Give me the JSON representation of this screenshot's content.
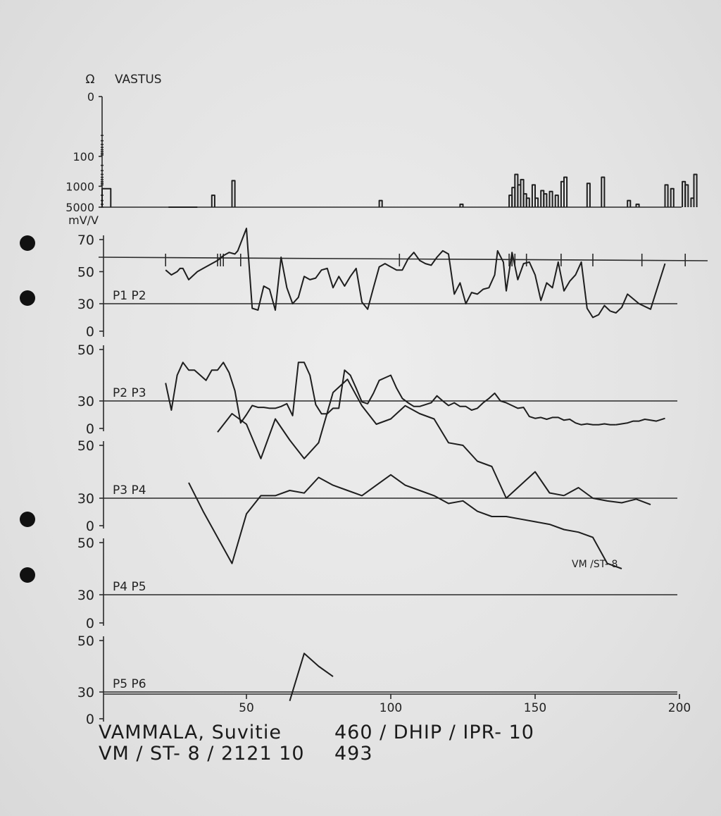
{
  "footer": {
    "left1": "VAMMALA, Suvitie",
    "left2": "VM / ST- 8  / 2121 10",
    "right1": "460 / DHIP / IPR- 10",
    "right2": "493"
  },
  "chart_data": {
    "type": "line",
    "x_ticks": [
      50,
      100,
      150,
      200
    ],
    "resistivity": {
      "title": "VASTUS",
      "unit": "Ω",
      "ticks": [
        "0",
        "100",
        "1000",
        "5000"
      ],
      "bars": [
        [
          0,
          3,
          1200
        ],
        [
          38,
          39,
          2000
        ],
        [
          45,
          46,
          650
        ],
        [
          96,
          97,
          3000
        ],
        [
          124,
          125,
          4000
        ],
        [
          141,
          142,
          2000
        ],
        [
          142,
          143,
          1100
        ],
        [
          143,
          144,
          400
        ],
        [
          144,
          145,
          900
        ],
        [
          145,
          146,
          600
        ],
        [
          146,
          147,
          1800
        ],
        [
          147,
          148,
          2500
        ],
        [
          149,
          150,
          900
        ],
        [
          150,
          151,
          2500
        ],
        [
          152,
          153,
          1400
        ],
        [
          153,
          154,
          1800
        ],
        [
          155,
          156,
          1500
        ],
        [
          157,
          158,
          2000
        ],
        [
          159,
          160,
          700
        ],
        [
          160,
          161,
          500
        ],
        [
          168,
          169,
          800
        ],
        [
          173,
          174,
          500
        ],
        [
          182,
          183,
          3000
        ],
        [
          185,
          186,
          4000
        ],
        [
          195,
          196,
          900
        ],
        [
          197,
          198,
          1200
        ],
        [
          201,
          202,
          700
        ],
        [
          202,
          203,
          900
        ],
        [
          204,
          205,
          2500
        ],
        [
          205,
          206,
          400
        ]
      ]
    },
    "ip_unit": "mV/V",
    "channels": [
      {
        "name": "P1 P2",
        "ticks": [
          "70",
          "50",
          "30",
          "0"
        ],
        "x": [
          22,
          24,
          26,
          27,
          28,
          30,
          33,
          35,
          38,
          40,
          42,
          44,
          46,
          47,
          50,
          52,
          54,
          56,
          58,
          60,
          62,
          64,
          66,
          68,
          70,
          72,
          74,
          76,
          78,
          80,
          82,
          84,
          86,
          88,
          90,
          92,
          94,
          96,
          98,
          100,
          102,
          104,
          106,
          108,
          110,
          112,
          114,
          116,
          118,
          120,
          122,
          124,
          126,
          128,
          130,
          132,
          134,
          136,
          137,
          139,
          140,
          142,
          144,
          146,
          148,
          150,
          152,
          154,
          156,
          158,
          160,
          162,
          164,
          166,
          168,
          170,
          172,
          174,
          176,
          178,
          180,
          182,
          186,
          190,
          195
        ],
        "y": [
          51,
          48,
          50,
          52,
          52,
          45,
          50,
          52,
          55,
          57,
          60,
          62,
          61,
          63,
          77,
          25,
          23,
          41,
          39,
          23,
          59,
          40,
          30,
          34,
          47,
          45,
          46,
          51,
          52,
          40,
          47,
          41,
          47,
          52,
          31,
          24,
          40,
          53,
          55,
          53,
          51,
          51,
          58,
          62,
          57,
          55,
          54,
          59,
          63,
          61,
          36,
          43,
          30,
          37,
          36,
          39,
          40,
          48,
          63,
          56,
          38,
          62,
          45,
          55,
          56,
          48,
          32,
          43,
          40,
          56,
          38,
          44,
          48,
          56,
          25,
          15,
          18,
          28,
          22,
          20,
          26,
          36,
          30,
          24,
          55
        ],
        "gray_from": 78
      },
      {
        "name": "P2 P3",
        "ticks": [
          "50",
          "30",
          "0"
        ],
        "x": [
          22,
          24,
          26,
          28,
          30,
          32,
          34,
          36,
          38,
          40,
          42,
          44,
          46,
          48,
          50,
          52,
          54,
          56,
          58,
          60,
          62,
          64,
          66,
          68,
          70,
          72,
          74,
          76,
          78,
          80,
          82,
          84,
          86,
          88,
          90,
          92,
          94,
          96,
          98,
          100,
          102,
          104,
          106,
          108,
          110,
          112,
          114,
          116,
          118,
          120,
          122,
          124,
          126,
          128,
          130,
          132,
          134,
          136,
          138,
          140,
          142,
          144,
          146,
          148,
          150,
          152,
          154,
          156,
          158,
          160,
          162,
          164,
          166,
          168,
          170,
          172,
          174,
          176,
          178,
          180,
          182,
          184,
          186,
          188,
          190,
          192,
          195
        ],
        "y": [
          37,
          20,
          40,
          45,
          42,
          42,
          40,
          38,
          42,
          42,
          45,
          41,
          34,
          6,
          15,
          25,
          23,
          23,
          22,
          22,
          24,
          27,
          14,
          45,
          45,
          40,
          26,
          16,
          16,
          22,
          22,
          42,
          40,
          35,
          29,
          27,
          33,
          38,
          39,
          40,
          35,
          31,
          28,
          24,
          24,
          26,
          28,
          32,
          30,
          25,
          28,
          24,
          24,
          20,
          22,
          28,
          31,
          33,
          30,
          28,
          25,
          22,
          23,
          13,
          11,
          12,
          10,
          12,
          12,
          9,
          10,
          6,
          4,
          5,
          4,
          4,
          5,
          4,
          4,
          5,
          6,
          8,
          8,
          10,
          9,
          8,
          11
        ],
        "gray_from": 78
      },
      {
        "name": "P3 P4",
        "ticks": [
          "50",
          "30",
          "0"
        ],
        "x": [
          40,
          45,
          50,
          55,
          60,
          65,
          70,
          75,
          80,
          85,
          90,
          95,
          100,
          105,
          110,
          115,
          120,
          125,
          130,
          135,
          140,
          145,
          150,
          155,
          160,
          165,
          170,
          175,
          180,
          185,
          190
        ],
        "y": [
          55,
          62,
          58,
          45,
          60,
          52,
          45,
          51,
          70,
          75,
          65,
          58,
          60,
          65,
          62,
          60,
          51,
          50,
          44,
          42,
          30,
          35,
          40,
          32,
          31,
          34,
          30,
          27,
          25,
          29,
          23
        ],
        "gray_from": 24
      },
      {
        "name": "P4 P5",
        "ticks": [
          "50",
          "30",
          "0"
        ],
        "x": [
          30,
          35,
          40,
          45,
          50,
          55,
          60,
          65,
          70,
          75,
          80,
          85,
          90,
          95,
          100,
          105,
          110,
          115,
          120,
          125,
          130,
          135,
          140,
          145,
          150,
          155,
          160,
          165,
          170,
          175,
          180
        ],
        "y": [
          73,
          62,
          52,
          42,
          61,
          68,
          68,
          70,
          69,
          75,
          72,
          70,
          68,
          72,
          76,
          72,
          70,
          68,
          65,
          66,
          62,
          60,
          60,
          59,
          58,
          57,
          55,
          54,
          52,
          42,
          40
        ],
        "gray_from": 30
      },
      {
        "name": "P5 P6",
        "ticks": [
          "50",
          "30",
          "0"
        ],
        "x": [
          65,
          70,
          75,
          80
        ],
        "y": [
          20,
          45,
          40,
          36
        ],
        "gray_from": 5
      }
    ]
  },
  "annotation": "VM /ST- 8"
}
